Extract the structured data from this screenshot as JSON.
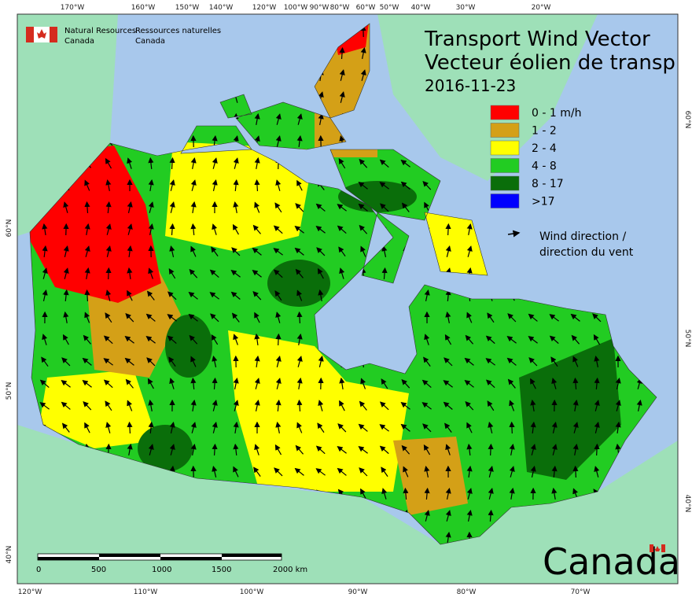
{
  "header": {
    "agency_en": "Natural Resources",
    "agency_en_2": "Canada",
    "agency_fr": "Ressources naturelles",
    "agency_fr_2": "Canada"
  },
  "title": {
    "line1": "Transport Wind Vector",
    "line2": "Vecteur éolien de transp",
    "date": "2016-11-23"
  },
  "legend": {
    "items": [
      {
        "label": "0 - 1 m/h",
        "color": "#ff0000"
      },
      {
        "label": "1 - 2",
        "color": "#d4a017"
      },
      {
        "label": "2 - 4",
        "color": "#ffff00"
      },
      {
        "label": "4 - 8",
        "color": "#22cc22"
      },
      {
        "label": "8 - 17",
        "color": "#0a6e0a"
      },
      {
        "label": ">17",
        "color": "#0000ff"
      }
    ],
    "arrow_label_1": "Wind direction /",
    "arrow_label_2": "direction du vent"
  },
  "axes": {
    "top": [
      "170°W",
      "160°W",
      "150°W",
      "140°W",
      "120°W",
      "100°W",
      "90°W",
      "80°W",
      "60°W",
      "50°W",
      "40°W",
      "30°W",
      "20°W"
    ],
    "bottom": [
      "120°W",
      "110°W",
      "100°W",
      "90°W",
      "80°W",
      "70°W"
    ],
    "left": [
      "60°N",
      "50°N",
      "40°N"
    ],
    "right": [
      "60°N",
      "50°N",
      "40°N"
    ]
  },
  "scale_bar": {
    "labels": [
      "0",
      "500",
      "1000",
      "1500",
      "2000  km"
    ]
  },
  "wordmark": "Canada"
}
